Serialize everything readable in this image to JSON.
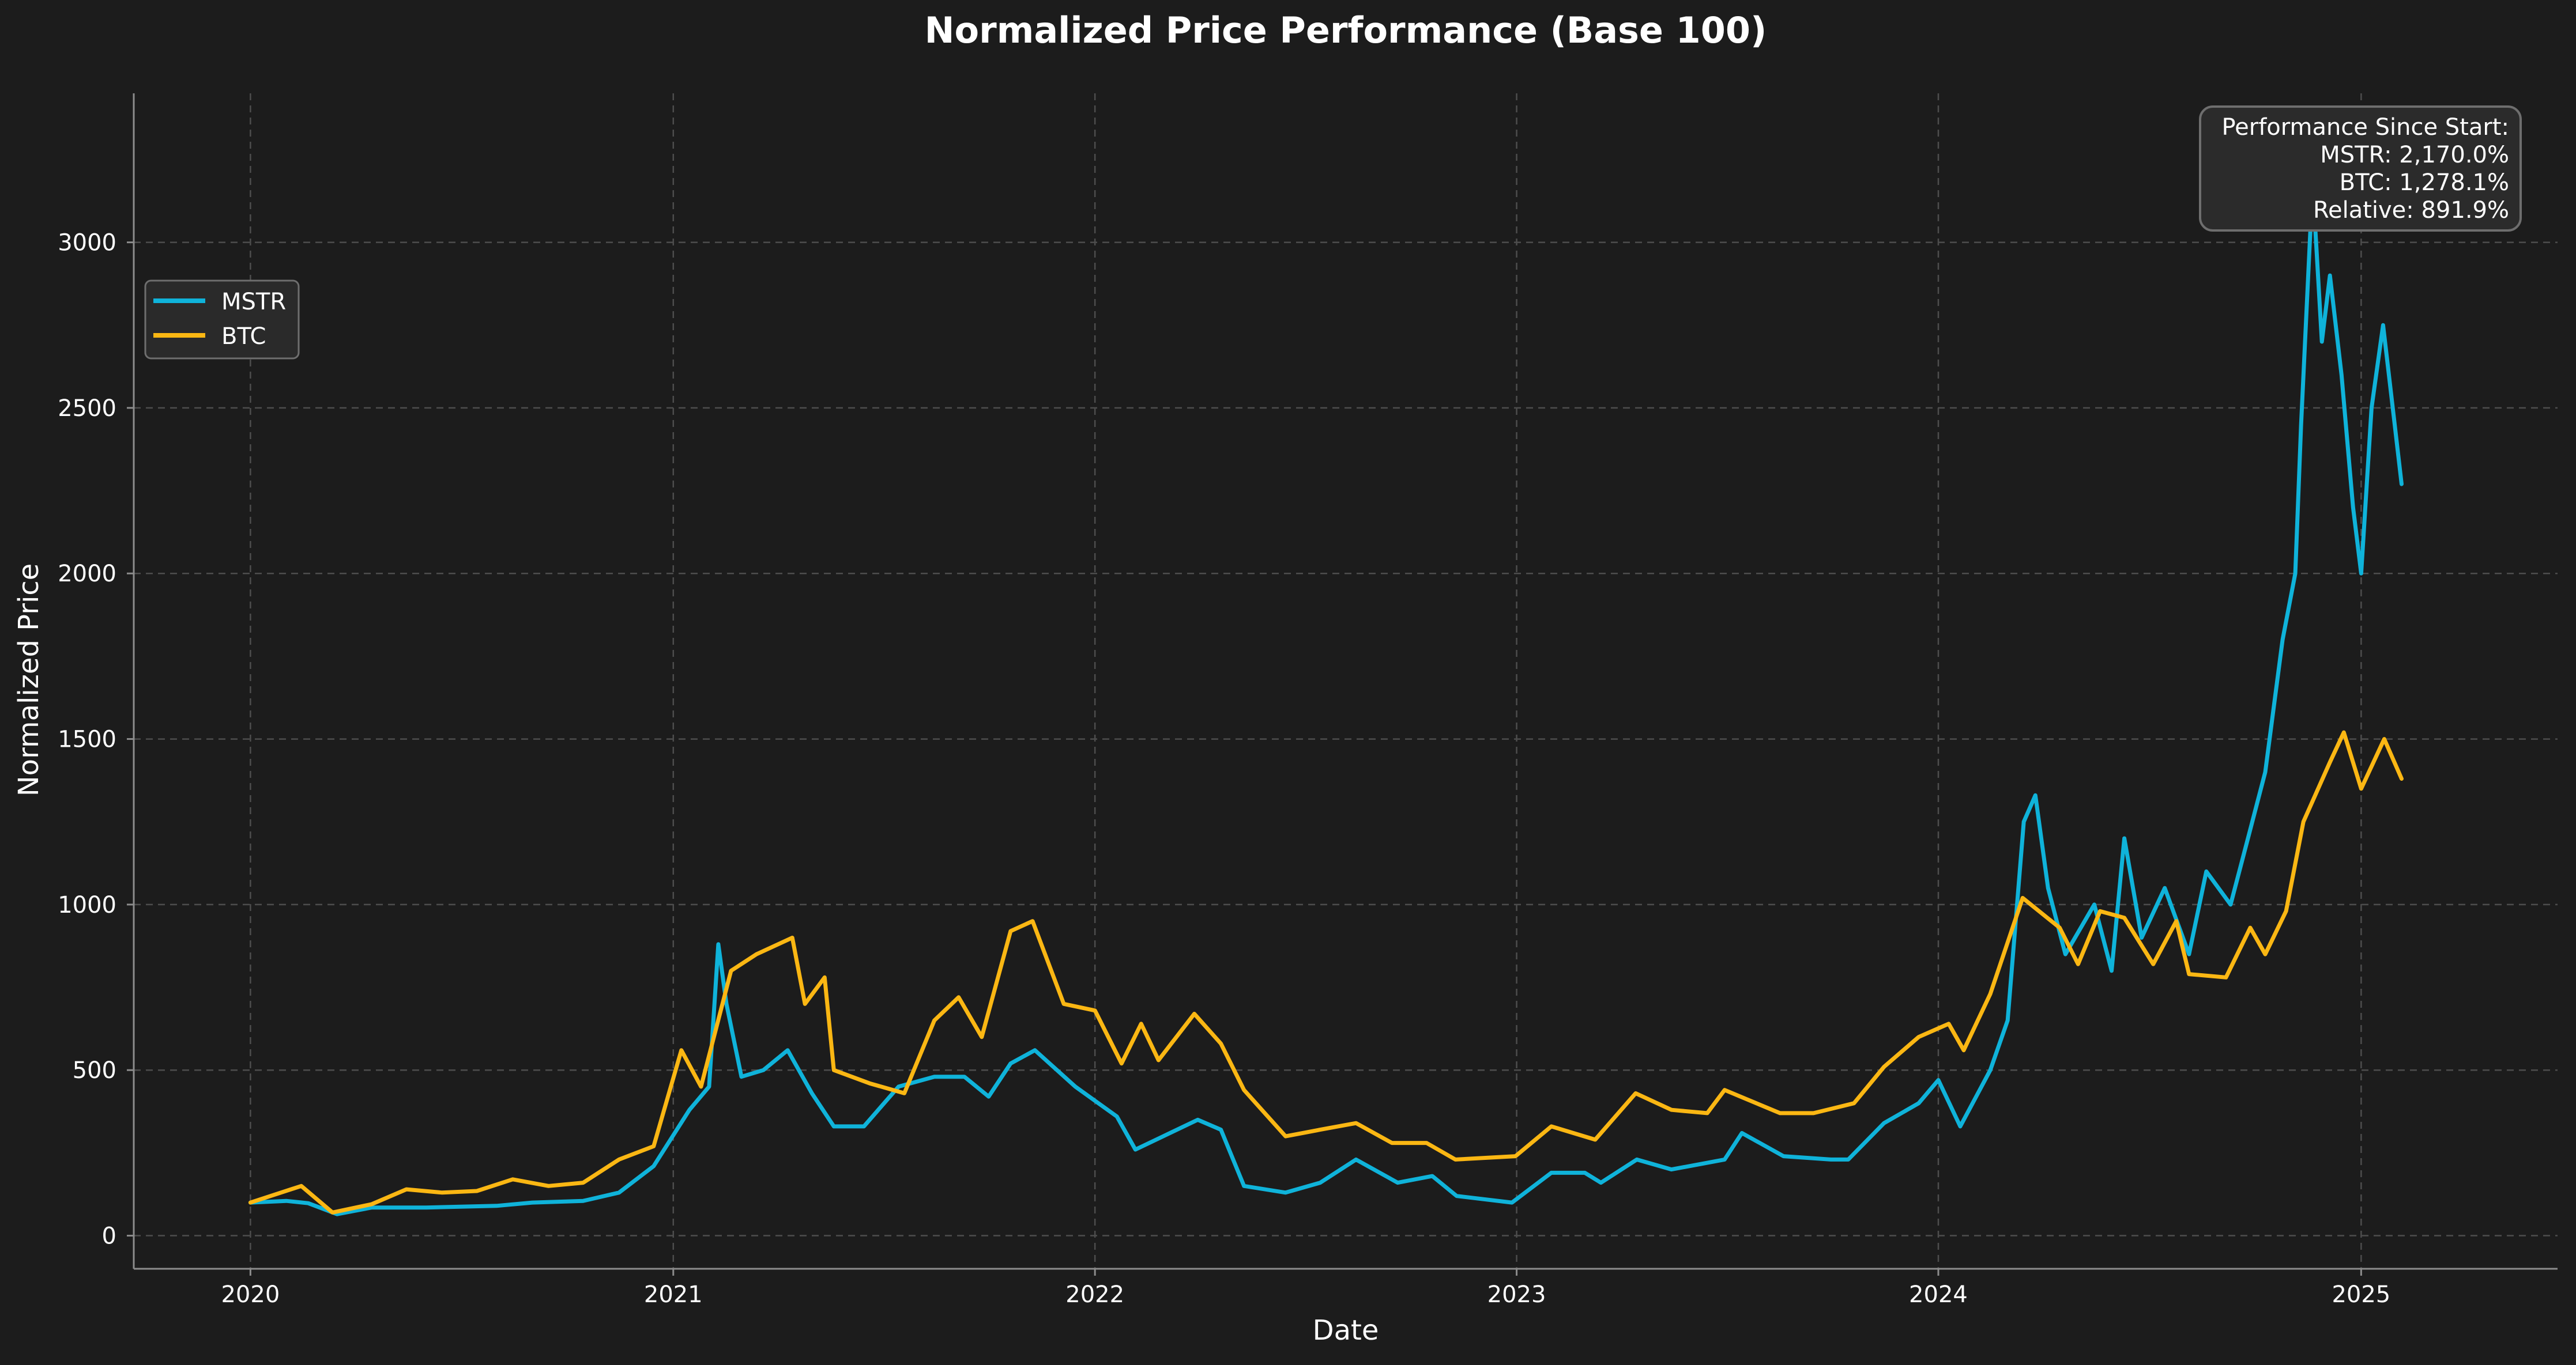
{
  "chart_data": {
    "type": "line",
    "title": "Normalized Price Performance (Base 100)",
    "xlabel": "Date",
    "ylabel": "Normalized Price",
    "xlim": [
      "2019-09-22",
      "2025-06-20"
    ],
    "ylim": [
      -100,
      3450
    ],
    "x_ticks": [
      "2020-01-01",
      "2021-01-01",
      "2022-01-01",
      "2023-01-01",
      "2024-01-01",
      "2025-01-01"
    ],
    "x_tick_labels": [
      "2020",
      "2021",
      "2022",
      "2023",
      "2024",
      "2025"
    ],
    "y_ticks": [
      0,
      500,
      1000,
      1500,
      2000,
      2500,
      3000
    ],
    "y_tick_labels": [
      "0",
      "500",
      "1000",
      "1500",
      "2000",
      "2500",
      "3000"
    ],
    "grid": true,
    "legend_position": "upper-left",
    "annotation": {
      "lines": [
        "Performance Since Start:",
        "MSTR: 2,170.0%",
        "BTC: 1,278.1%",
        "Relative: 891.9%"
      ],
      "position": "top-right"
    },
    "series": [
      {
        "name": "MSTR",
        "color": "#0fb3da",
        "points": [
          [
            "2020-01-01",
            100
          ],
          [
            "2020-02-01",
            105
          ],
          [
            "2020-02-20",
            98
          ],
          [
            "2020-03-16",
            65
          ],
          [
            "2020-04-15",
            85
          ],
          [
            "2020-06-01",
            85
          ],
          [
            "2020-08-01",
            90
          ],
          [
            "2020-09-01",
            100
          ],
          [
            "2020-10-15",
            105
          ],
          [
            "2020-11-15",
            130
          ],
          [
            "2020-12-15",
            210
          ],
          [
            "2021-01-15",
            380
          ],
          [
            "2021-02-01",
            450
          ],
          [
            "2021-02-09",
            880
          ],
          [
            "2021-02-16",
            700
          ],
          [
            "2021-03-01",
            480
          ],
          [
            "2021-03-20",
            500
          ],
          [
            "2021-04-10",
            560
          ],
          [
            "2021-05-01",
            430
          ],
          [
            "2021-05-20",
            330
          ],
          [
            "2021-06-15",
            330
          ],
          [
            "2021-07-15",
            450
          ],
          [
            "2021-08-15",
            480
          ],
          [
            "2021-09-10",
            480
          ],
          [
            "2021-10-01",
            420
          ],
          [
            "2021-10-20",
            520
          ],
          [
            "2021-11-10",
            560
          ],
          [
            "2021-12-15",
            450
          ],
          [
            "2022-01-20",
            360
          ],
          [
            "2022-02-05",
            260
          ],
          [
            "2022-03-01",
            300
          ],
          [
            "2022-03-31",
            350
          ],
          [
            "2022-04-20",
            320
          ],
          [
            "2022-05-10",
            150
          ],
          [
            "2022-06-15",
            130
          ],
          [
            "2022-07-15",
            160
          ],
          [
            "2022-08-15",
            230
          ],
          [
            "2022-09-20",
            160
          ],
          [
            "2022-10-20",
            180
          ],
          [
            "2022-11-10",
            120
          ],
          [
            "2022-12-28",
            100
          ],
          [
            "2023-01-31",
            190
          ],
          [
            "2023-03-01",
            190
          ],
          [
            "2023-03-15",
            160
          ],
          [
            "2023-04-15",
            230
          ],
          [
            "2023-05-15",
            200
          ],
          [
            "2023-06-30",
            230
          ],
          [
            "2023-07-15",
            310
          ],
          [
            "2023-08-20",
            240
          ],
          [
            "2023-09-30",
            230
          ],
          [
            "2023-10-15",
            230
          ],
          [
            "2023-11-15",
            340
          ],
          [
            "2023-12-15",
            400
          ],
          [
            "2024-01-01",
            470
          ],
          [
            "2024-01-20",
            330
          ],
          [
            "2024-02-15",
            500
          ],
          [
            "2024-03-01",
            650
          ],
          [
            "2024-03-15",
            1250
          ],
          [
            "2024-03-25",
            1330
          ],
          [
            "2024-04-05",
            1050
          ],
          [
            "2024-04-20",
            850
          ],
          [
            "2024-05-15",
            1000
          ],
          [
            "2024-05-30",
            800
          ],
          [
            "2024-06-10",
            1200
          ],
          [
            "2024-06-25",
            900
          ],
          [
            "2024-07-15",
            1050
          ],
          [
            "2024-08-05",
            850
          ],
          [
            "2024-08-20",
            1100
          ],
          [
            "2024-09-10",
            1000
          ],
          [
            "2024-09-25",
            1200
          ],
          [
            "2024-10-10",
            1400
          ],
          [
            "2024-10-25",
            1800
          ],
          [
            "2024-11-05",
            2000
          ],
          [
            "2024-11-10",
            2450
          ],
          [
            "2024-11-20",
            3180
          ],
          [
            "2024-11-28",
            2700
          ],
          [
            "2024-12-05",
            2900
          ],
          [
            "2024-12-15",
            2600
          ],
          [
            "2024-12-25",
            2200
          ],
          [
            "2025-01-01",
            2000
          ],
          [
            "2025-01-10",
            2500
          ],
          [
            "2025-01-20",
            2750
          ],
          [
            "2025-01-30",
            2450
          ],
          [
            "2025-02-05",
            2270
          ]
        ]
      },
      {
        "name": "BTC",
        "color": "#fbb713",
        "points": [
          [
            "2020-01-01",
            100
          ],
          [
            "2020-02-14",
            150
          ],
          [
            "2020-03-12",
            70
          ],
          [
            "2020-04-15",
            95
          ],
          [
            "2020-05-15",
            140
          ],
          [
            "2020-06-15",
            130
          ],
          [
            "2020-07-15",
            135
          ],
          [
            "2020-08-15",
            170
          ],
          [
            "2020-09-15",
            150
          ],
          [
            "2020-10-15",
            160
          ],
          [
            "2020-11-15",
            230
          ],
          [
            "2020-12-15",
            270
          ],
          [
            "2021-01-08",
            560
          ],
          [
            "2021-01-25",
            450
          ],
          [
            "2021-02-20",
            800
          ],
          [
            "2021-03-14",
            850
          ],
          [
            "2021-04-14",
            900
          ],
          [
            "2021-04-25",
            700
          ],
          [
            "2021-05-12",
            780
          ],
          [
            "2021-05-20",
            500
          ],
          [
            "2021-06-20",
            460
          ],
          [
            "2021-07-20",
            430
          ],
          [
            "2021-08-15",
            650
          ],
          [
            "2021-09-05",
            720
          ],
          [
            "2021-09-25",
            600
          ],
          [
            "2021-10-20",
            920
          ],
          [
            "2021-11-08",
            950
          ],
          [
            "2021-12-05",
            700
          ],
          [
            "2022-01-01",
            680
          ],
          [
            "2022-01-24",
            520
          ],
          [
            "2022-02-10",
            640
          ],
          [
            "2022-02-25",
            530
          ],
          [
            "2022-03-28",
            670
          ],
          [
            "2022-04-20",
            580
          ],
          [
            "2022-05-10",
            440
          ],
          [
            "2022-06-15",
            300
          ],
          [
            "2022-07-15",
            320
          ],
          [
            "2022-08-15",
            340
          ],
          [
            "2022-09-15",
            280
          ],
          [
            "2022-10-15",
            280
          ],
          [
            "2022-11-09",
            230
          ],
          [
            "2022-12-31",
            240
          ],
          [
            "2023-01-31",
            330
          ],
          [
            "2023-03-10",
            290
          ],
          [
            "2023-04-14",
            430
          ],
          [
            "2023-05-15",
            380
          ],
          [
            "2023-06-15",
            370
          ],
          [
            "2023-06-30",
            440
          ],
          [
            "2023-08-17",
            370
          ],
          [
            "2023-09-15",
            370
          ],
          [
            "2023-10-20",
            400
          ],
          [
            "2023-11-15",
            510
          ],
          [
            "2023-12-15",
            600
          ],
          [
            "2024-01-10",
            640
          ],
          [
            "2024-01-23",
            560
          ],
          [
            "2024-02-15",
            730
          ],
          [
            "2024-03-14",
            1020
          ],
          [
            "2024-04-15",
            930
          ],
          [
            "2024-05-01",
            820
          ],
          [
            "2024-05-20",
            980
          ],
          [
            "2024-06-10",
            960
          ],
          [
            "2024-07-05",
            820
          ],
          [
            "2024-07-25",
            950
          ],
          [
            "2024-08-05",
            790
          ],
          [
            "2024-09-06",
            780
          ],
          [
            "2024-09-27",
            930
          ],
          [
            "2024-10-10",
            850
          ],
          [
            "2024-10-28",
            980
          ],
          [
            "2024-11-12",
            1250
          ],
          [
            "2024-12-05",
            1430
          ],
          [
            "2024-12-17",
            1520
          ],
          [
            "2025-01-01",
            1350
          ],
          [
            "2025-01-21",
            1500
          ],
          [
            "2025-02-05",
            1380
          ]
        ]
      }
    ]
  }
}
